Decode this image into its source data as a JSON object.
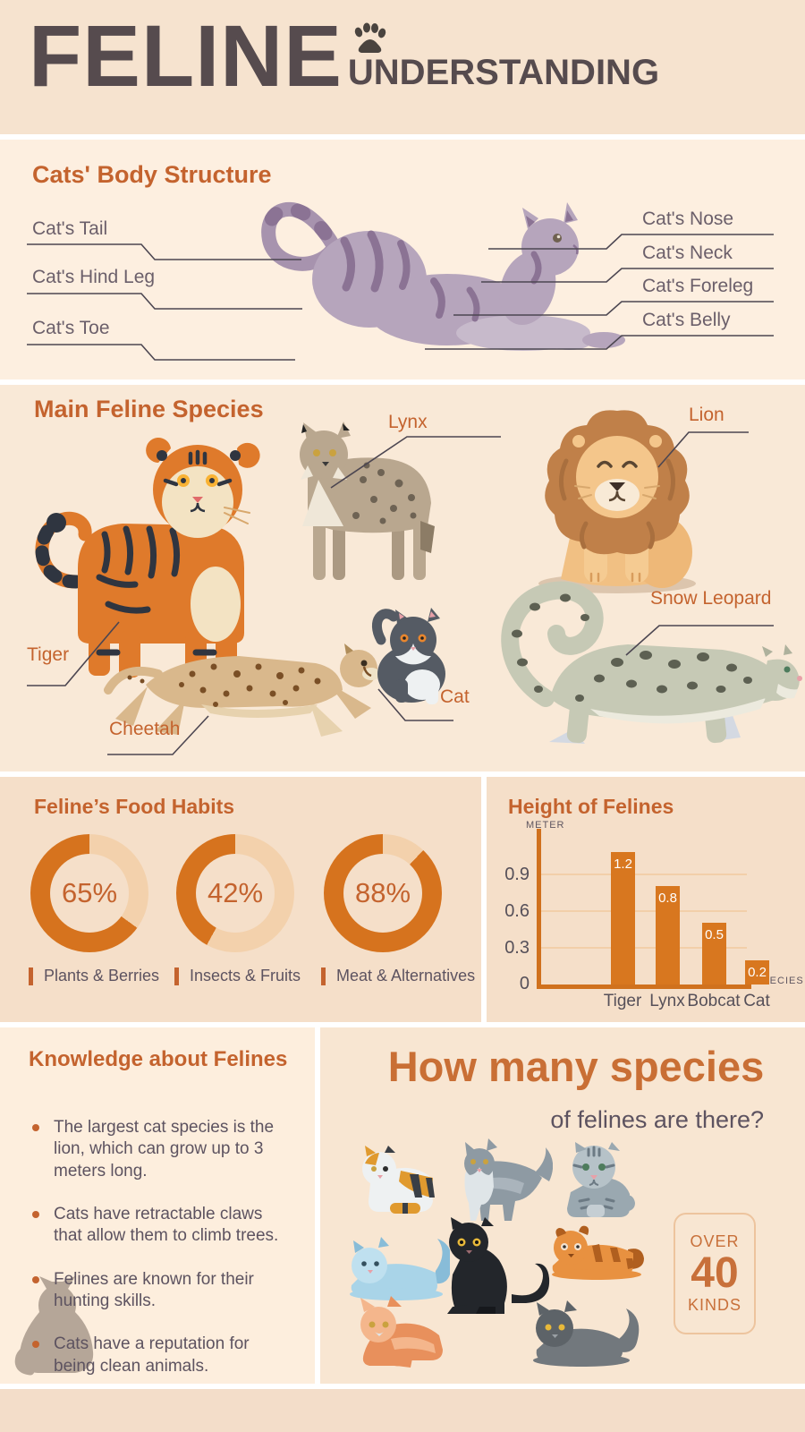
{
  "header": {
    "title_line1": "FELINE",
    "title_line2": "UNDERSTANDING"
  },
  "body_structure": {
    "title": "Cats' Body Structure",
    "left_labels": [
      "Cat's Tail",
      "Cat's Hind Leg",
      "Cat's Toe"
    ],
    "right_labels": [
      "Cat's Nose",
      "Cat's Neck",
      "Cat's Foreleg",
      "Cat's Belly"
    ]
  },
  "species": {
    "title": "Main Feline Species",
    "labels": [
      "Tiger",
      "Lynx",
      "Lion",
      "Cheetah",
      "Cat",
      "Snow Leopard"
    ]
  },
  "food_habits": {
    "title": "Feline’s Food Habits",
    "donuts": [
      {
        "percent": 65,
        "percent_label": "65%",
        "label": "Plants & Berries"
      },
      {
        "percent": 42,
        "percent_label": "42%",
        "label": "Insects & Fruits"
      },
      {
        "percent": 88,
        "percent_label": "88%",
        "label": "Meat & Alternatives"
      }
    ]
  },
  "height_chart": {
    "title": "Height of Felines",
    "y_unit": "METER",
    "x_unit": "SPECIES",
    "yticks": [
      "0.9",
      "0.6",
      "0.3",
      "0"
    ],
    "categories": [
      "Tiger",
      "Lynx",
      "Bobcat",
      "Cat"
    ],
    "values": [
      1.2,
      0.8,
      0.5,
      0.2
    ]
  },
  "knowledge": {
    "title": "Knowledge about Felines",
    "bullets": [
      "The largest cat species is the lion, which can grow up to 3 meters long.",
      "Cats have retractable claws that allow them to climb trees.",
      "Felines are known for their hunting skills.",
      "Cats have a reputation for being clean animals."
    ]
  },
  "species_count": {
    "heading": "How many species",
    "subheading": "of felines are there?",
    "badge": {
      "line1": "OVER",
      "line2": "40",
      "line3": "KINDS"
    }
  },
  "chart_data": [
    {
      "type": "pie",
      "title": "Feline's Food Habits",
      "series": [
        {
          "name": "Plants & Berries",
          "value": 65
        },
        {
          "name": "Insects & Fruits",
          "value": 42
        },
        {
          "name": "Meat & Alternatives",
          "value": 88
        }
      ],
      "note": "three donut gauges showing percent"
    },
    {
      "type": "bar",
      "title": "Height of Felines",
      "categories": [
        "Tiger",
        "Lynx",
        "Bobcat",
        "Cat"
      ],
      "values": [
        1.2,
        0.8,
        0.5,
        0.2
      ],
      "xlabel": "SPECIES",
      "ylabel": "METER",
      "ylim": [
        0,
        1.25
      ],
      "yticks": [
        0,
        0.3,
        0.6,
        0.9
      ],
      "grid": true,
      "legend_position": "none"
    }
  ],
  "colors": {
    "heading_orange": "#c4632e",
    "donut_fill": "#d6731e",
    "donut_track": "#f3d1ac",
    "bar_orange": "#d8771f",
    "title_dark": "#564b4e",
    "text_dark": "#5d5360"
  }
}
